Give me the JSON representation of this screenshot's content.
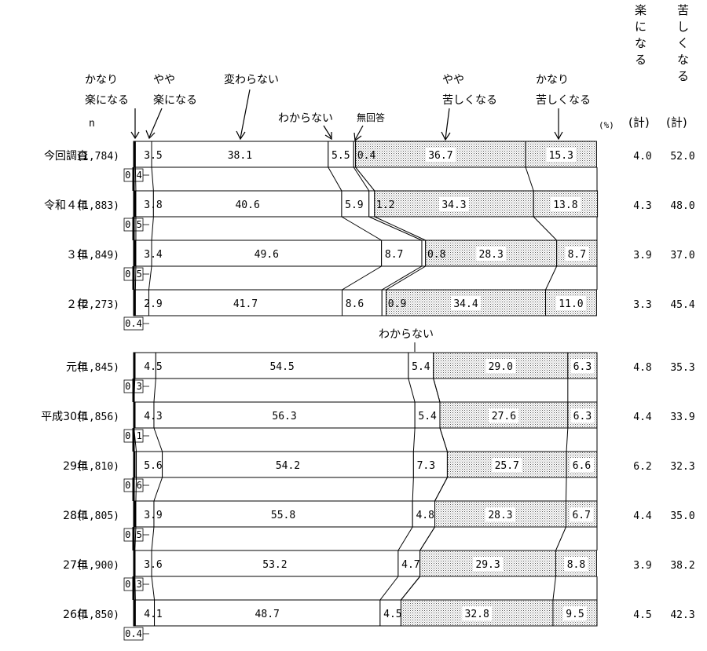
{
  "legend": {
    "n_label": "n",
    "unit": "(%)",
    "cat1": [
      "かなり",
      "楽になる"
    ],
    "cat2": [
      "やや",
      "楽になる"
    ],
    "cat3": "変わらない",
    "cat4": "わからない",
    "cat5": "無回答",
    "cat6": [
      "やや",
      "苦しくなる"
    ],
    "cat7": [
      "かなり",
      "苦しくなる"
    ],
    "wakaranai_mid": "わからない"
  },
  "summary_headers": {
    "easier_title": "楽になる",
    "harder_title": "苦しくなる",
    "easier_sub": "(計)",
    "harder_sub": "(計)"
  },
  "chart_data": {
    "type": "bar",
    "orientation": "horizontal-stacked-100",
    "unit": "%",
    "series_names": [
      "かなり楽になる",
      "やや楽になる",
      "変わらない",
      "わからない",
      "無回答",
      "やや苦しくなる",
      "かなり苦しくなる"
    ],
    "rows": [
      {
        "label": "今回調査",
        "n": "(1,784)",
        "values": [
          0.4,
          3.5,
          38.1,
          5.5,
          0.4,
          36.7,
          15.3
        ],
        "labels": [
          "0.4",
          "3.5",
          "38.1",
          "5.5",
          "0.4",
          "36.7",
          "15.3"
        ],
        "easier_total": "4.0",
        "harder_total": "52.0"
      },
      {
        "label": "令和４年",
        "n": "(1,883)",
        "values": [
          0.5,
          3.8,
          40.6,
          5.9,
          1.2,
          34.3,
          13.8
        ],
        "labels": [
          "0.5",
          "3.8",
          "40.6",
          "5.9",
          "1.2",
          "34.3",
          "13.8"
        ],
        "easier_total": "4.3",
        "harder_total": "48.0"
      },
      {
        "label": "３年",
        "n": "(1,849)",
        "values": [
          0.5,
          3.4,
          49.6,
          8.7,
          0.8,
          28.3,
          8.7
        ],
        "labels": [
          "0.5",
          "3.4",
          "49.6",
          "8.7",
          "0.8",
          "28.3",
          "8.7"
        ],
        "easier_total": "3.9",
        "harder_total": "37.0"
      },
      {
        "label": "２年",
        "n": "(2,273)",
        "values": [
          0.4,
          2.9,
          41.7,
          8.6,
          0.9,
          34.4,
          11.0
        ],
        "labels": [
          "0.4",
          "2.9",
          "41.7",
          "8.6",
          "0.9",
          "34.4",
          "11.0"
        ],
        "easier_total": "3.3",
        "harder_total": "45.4"
      },
      {
        "label": "元年",
        "n": "(1,845)",
        "values": [
          0.3,
          4.5,
          54.5,
          5.4,
          0,
          29.0,
          6.3
        ],
        "labels": [
          "0.3",
          "4.5",
          "54.5",
          "5.4",
          "",
          "29.0",
          "6.3"
        ],
        "easier_total": "4.8",
        "harder_total": "35.3"
      },
      {
        "label": "平成30年",
        "n": "(1,856)",
        "values": [
          0.1,
          4.3,
          56.3,
          5.4,
          0,
          27.6,
          6.3
        ],
        "labels": [
          "0.1",
          "4.3",
          "56.3",
          "5.4",
          "",
          "27.6",
          "6.3"
        ],
        "easier_total": "4.4",
        "harder_total": "33.9"
      },
      {
        "label": "29年",
        "n": "(1,810)",
        "values": [
          0.6,
          5.6,
          54.2,
          7.3,
          0,
          25.7,
          6.6
        ],
        "labels": [
          "0.6",
          "5.6",
          "54.2",
          "7.3",
          "",
          "25.7",
          "6.6"
        ],
        "easier_total": "6.2",
        "harder_total": "32.3"
      },
      {
        "label": "28年",
        "n": "(1,805)",
        "values": [
          0.5,
          3.9,
          55.8,
          4.8,
          0,
          28.3,
          6.7
        ],
        "labels": [
          "0.5",
          "3.9",
          "55.8",
          "4.8",
          "",
          "28.3",
          "6.7"
        ],
        "easier_total": "4.4",
        "harder_total": "35.0"
      },
      {
        "label": "27年",
        "n": "(1,900)",
        "values": [
          0.3,
          3.6,
          53.2,
          4.7,
          0,
          29.3,
          8.8
        ],
        "labels": [
          "0.3",
          "3.6",
          "53.2",
          "4.7",
          "",
          "29.3",
          "8.8"
        ],
        "easier_total": "3.9",
        "harder_total": "38.2"
      },
      {
        "label": "26年",
        "n": "(1,850)",
        "values": [
          0.4,
          4.1,
          48.7,
          4.5,
          0,
          32.8,
          9.5
        ],
        "labels": [
          "0.4",
          "4.1",
          "48.7",
          "4.5",
          "",
          "32.8",
          "9.5"
        ],
        "easier_total": "4.5",
        "harder_total": "42.3"
      }
    ],
    "colors": {
      "plain": "#ffffff",
      "dotted": "#d8d8d8",
      "line": "#000000"
    }
  }
}
